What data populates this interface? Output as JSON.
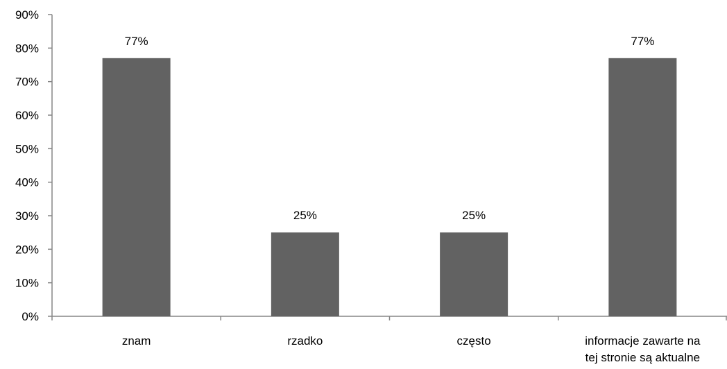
{
  "chart_data": {
    "type": "bar",
    "title": "",
    "xlabel": "",
    "ylabel": "",
    "categories": [
      [
        "znam"
      ],
      [
        "rzadko"
      ],
      [
        "często"
      ],
      [
        "informacje zawarte na",
        "tej stronie są aktualne"
      ]
    ],
    "values": [
      77,
      25,
      25,
      77
    ],
    "data_labels": [
      "77%",
      "25%",
      "25%",
      "77%"
    ],
    "ylim": [
      0,
      90
    ],
    "yticks": [
      0,
      10,
      20,
      30,
      40,
      50,
      60,
      70,
      80,
      90
    ],
    "ytick_labels": [
      "0%",
      "10%",
      "20%",
      "30%",
      "40%",
      "50%",
      "60%",
      "70%",
      "80%",
      "90%"
    ],
    "grid": false,
    "legend": "none",
    "bar_color": "#626262"
  }
}
